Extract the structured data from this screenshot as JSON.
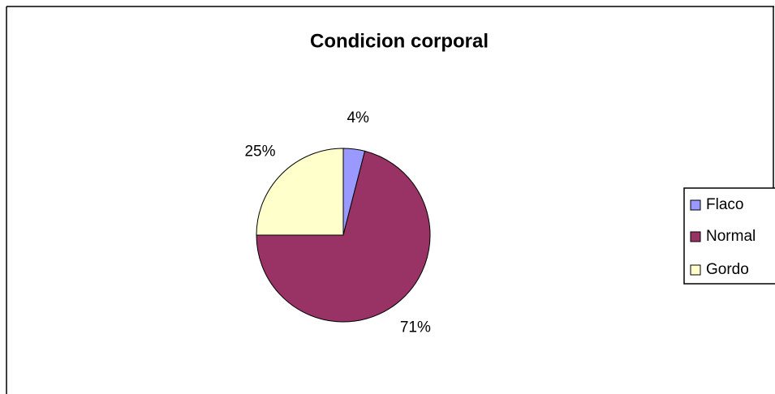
{
  "chart_data": {
    "type": "pie",
    "title": "Condicion corporal",
    "categories": [
      "Flaco",
      "Normal",
      "Gordo"
    ],
    "values": [
      4,
      71,
      25
    ],
    "value_labels": [
      "4%",
      "71%",
      "25%"
    ],
    "colors": [
      "#9999FF",
      "#993366",
      "#FFFFCC"
    ],
    "legend": "right"
  }
}
